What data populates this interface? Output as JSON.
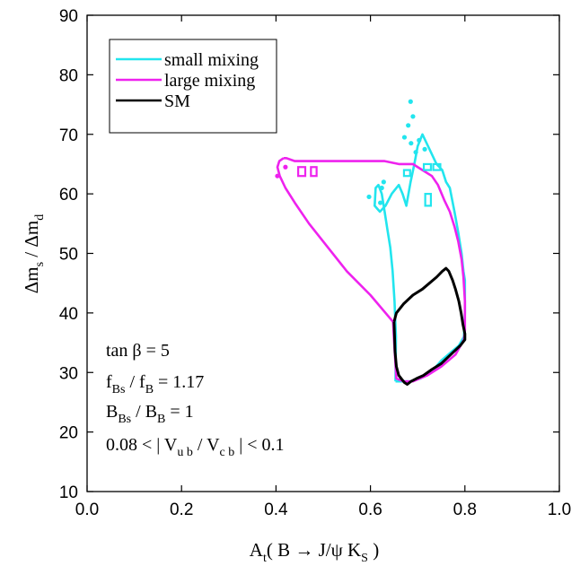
{
  "chart_data": {
    "type": "line",
    "xlabel": "A_t( B → J/ψ K_S )",
    "ylabel": "Δm_s / Δm_d",
    "xlim": [
      0.0,
      1.0
    ],
    "ylim": [
      10,
      90
    ],
    "x_ticks": [
      0.0,
      0.2,
      0.4,
      0.6,
      0.8,
      1.0
    ],
    "x_tick_labels": [
      "0.0",
      "0.2",
      "0.4",
      "0.6",
      "0.8",
      "1.0"
    ],
    "y_ticks": [
      10,
      20,
      30,
      40,
      50,
      60,
      70,
      80,
      90
    ],
    "y_tick_labels": [
      "10",
      "20",
      "30",
      "40",
      "50",
      "60",
      "70",
      "80",
      "90"
    ],
    "legend_position": "top-left",
    "series": [
      {
        "name": "small mixing",
        "color": "#22e5ee",
        "x": [
          0.653,
          0.654,
          0.651,
          0.647,
          0.642,
          0.636,
          0.63,
          0.624,
          0.617,
          0.611,
          0.609,
          0.62,
          0.632,
          0.645,
          0.66,
          0.668,
          0.676,
          0.685,
          0.693,
          0.7,
          0.71,
          0.722,
          0.74,
          0.752,
          0.76,
          0.768,
          0.778,
          0.786,
          0.793,
          0.797,
          0.8,
          0.8,
          0.798,
          0.787,
          0.772,
          0.75,
          0.728,
          0.706,
          0.684,
          0.667,
          0.653
        ],
        "y": [
          28.5,
          36.0,
          42.0,
          47.0,
          51.0,
          54.0,
          57.0,
          60.0,
          61.5,
          61.0,
          58.0,
          57.0,
          58.0,
          60.0,
          61.5,
          60.0,
          58.0,
          62.0,
          65.0,
          68.0,
          70.0,
          68.0,
          65.0,
          64.0,
          62.0,
          61.0,
          57.0,
          53.5,
          50.0,
          47.0,
          45.5,
          40.0,
          36.0,
          34.5,
          33.5,
          32.0,
          30.0,
          29.0,
          28.5,
          28.5,
          28.5
        ]
      },
      {
        "name": "large mixing",
        "color": "#ee22ee",
        "x": [
          0.416,
          0.422,
          0.44,
          0.49,
          0.54,
          0.59,
          0.63,
          0.66,
          0.69,
          0.71,
          0.73,
          0.743,
          0.756,
          0.768,
          0.778,
          0.786,
          0.793,
          0.797,
          0.8,
          0.8,
          0.798,
          0.78,
          0.75,
          0.72,
          0.69,
          0.67,
          0.655,
          0.651,
          0.648,
          0.6,
          0.55,
          0.51,
          0.47,
          0.44,
          0.42,
          0.408,
          0.403,
          0.407,
          0.416
        ],
        "y": [
          66.0,
          66.0,
          65.5,
          65.5,
          65.5,
          65.5,
          65.5,
          65.0,
          65.0,
          64.0,
          63.0,
          61.5,
          59.0,
          57.0,
          54.5,
          52.0,
          49.0,
          46.0,
          42.0,
          37.0,
          35.5,
          33.0,
          31.0,
          29.5,
          28.5,
          28.5,
          29.0,
          34.0,
          38.5,
          43.0,
          47.0,
          51.0,
          55.0,
          58.5,
          61.0,
          63.0,
          64.5,
          65.5,
          66.0
        ]
      },
      {
        "name": "SM",
        "color": "#000000",
        "x": [
          0.65,
          0.655,
          0.67,
          0.69,
          0.71,
          0.725,
          0.74,
          0.752,
          0.76,
          0.766,
          0.774,
          0.78,
          0.787,
          0.792,
          0.796,
          0.8,
          0.8,
          0.79,
          0.77,
          0.75,
          0.73,
          0.712,
          0.698,
          0.686,
          0.678,
          0.672,
          0.667,
          0.66,
          0.655,
          0.652,
          0.65
        ],
        "y": [
          38.5,
          40.0,
          41.5,
          43.0,
          44.0,
          45.0,
          46.0,
          47.0,
          47.5,
          47.0,
          45.5,
          44.0,
          42.0,
          40.0,
          38.0,
          36.5,
          35.5,
          34.5,
          33.0,
          31.5,
          30.5,
          29.5,
          29.0,
          28.5,
          28.0,
          28.3,
          28.8,
          29.5,
          31.0,
          33.5,
          38.5
        ]
      }
    ],
    "small_mixing_dots": {
      "x": [
        0.685,
        0.69,
        0.68,
        0.672,
        0.686,
        0.696,
        0.703,
        0.715,
        0.628,
        0.624,
        0.621,
        0.597
      ],
      "y": [
        75.5,
        73.0,
        71.5,
        69.5,
        68.5,
        67.0,
        69.0,
        67.5,
        62.0,
        61.0,
        58.5,
        59.5
      ]
    },
    "small_mixing_squares": [
      {
        "x": [
          0.713,
          0.728
        ],
        "y": [
          64.0,
          65.0
        ]
      },
      {
        "x": [
          0.733,
          0.748
        ],
        "y": [
          64.0,
          65.0
        ]
      },
      {
        "x": [
          0.671,
          0.684
        ],
        "y": [
          63.0,
          64.0
        ]
      },
      {
        "x": [
          0.716,
          0.728
        ],
        "y": [
          58.0,
          60.0
        ]
      }
    ],
    "large_mixing_dots": {
      "x": [
        0.403,
        0.42
      ],
      "y": [
        63.0,
        64.5
      ]
    },
    "large_mixing_squares": [
      {
        "x": [
          0.447,
          0.462
        ],
        "y": [
          63.0,
          64.5
        ]
      },
      {
        "x": [
          0.474,
          0.486
        ],
        "y": [
          63.0,
          64.5
        ]
      }
    ]
  },
  "legend": {
    "items": [
      {
        "label": "small mixing",
        "color": "#22e5ee"
      },
      {
        "label": "large mixing",
        "color": "#ee22ee"
      },
      {
        "label": "SM",
        "color": "#000000"
      }
    ]
  },
  "annotations": {
    "tan_beta": "tan β = 5",
    "fBs_ratio": "f_Bs / f_B = 1.17",
    "BBs_ratio": "B_Bs / B_B = 1",
    "vub_vcb": "0.08 < | V_ub / V_cb | < 0.1"
  }
}
